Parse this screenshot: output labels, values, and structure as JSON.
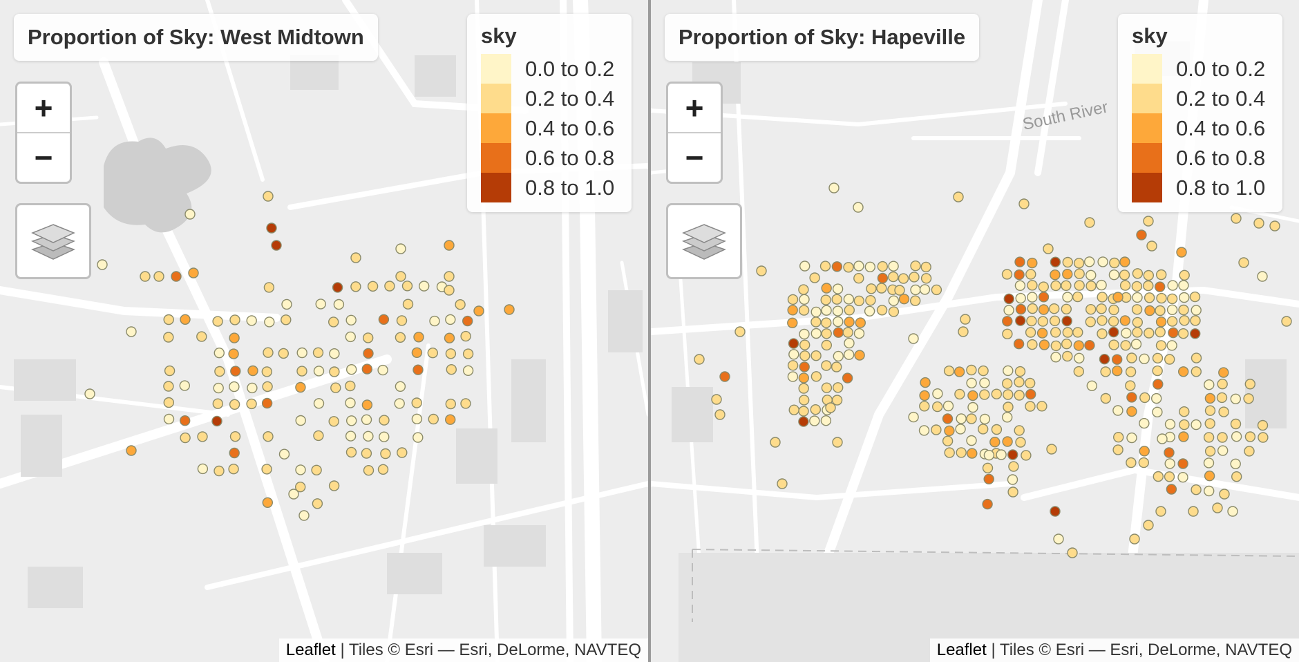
{
  "maps": [
    {
      "title": "Proportion of Sky: West Midtown",
      "zoom_in": "+",
      "zoom_out": "−",
      "legend_title": "sky",
      "attribution_link": "Leaflet",
      "attribution_text": " | Tiles © Esri — Esri, DeLorme, NAVTEQ"
    },
    {
      "title": "Proportion of Sky: Hapeville",
      "zoom_in": "+",
      "zoom_out": "−",
      "legend_title": "sky",
      "attribution_link": "Leaflet",
      "attribution_text": " | Tiles © Esri — Esri, DeLorme, NAVTEQ"
    }
  ],
  "legend": [
    {
      "label": "0.0 to 0.2",
      "color": "#FFF5C8"
    },
    {
      "label": "0.2 to 0.4",
      "color": "#FEDC8C"
    },
    {
      "label": "0.4 to 0.6",
      "color": "#FDA83A"
    },
    {
      "label": "0.6 to 0.8",
      "color": "#E8701A"
    },
    {
      "label": "0.8 to 1.0",
      "color": "#B53C06"
    }
  ],
  "map_labels": {
    "south_river": "South River"
  },
  "icons": [
    "zoom-in-icon",
    "zoom-out-icon",
    "layers-icon"
  ]
}
